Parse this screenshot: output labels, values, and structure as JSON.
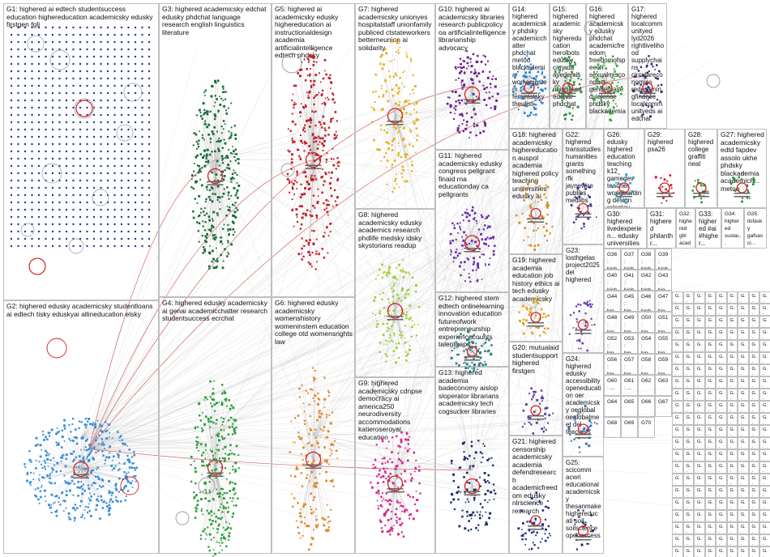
{
  "groups": [
    {
      "id": "G1",
      "label": "G1: highered ai edtech studentsuccess education highereducation academicsky edusky firstgen fgli"
    },
    {
      "id": "G2",
      "label": "G2: highered edusky academicsky studentloans ai edtech tisky eduskyai allineducation elsky"
    },
    {
      "id": "G3",
      "label": "G3: highered academicsky edchat edusky phdchat language research english linguistics literature"
    },
    {
      "id": "G4",
      "label": "G4: highered edusky academicsky ai genai academicchatter research studentsuccess ecrchat"
    },
    {
      "id": "G5",
      "label": "G5: highered ai academicsky edusky highereducation ai instructionaldesign academia artificialintelligence edtech phdsky"
    },
    {
      "id": "G6",
      "label": "G6: highered edusky academicsky womenshistory womeninstem education college otd womensrights law"
    },
    {
      "id": "G7",
      "label": "G7: highered academicsky unionyes hospitalstaff unionfamily publiced ctstateworkers betterneunion ai solidarity"
    },
    {
      "id": "G8",
      "label": "G8: highered academicsky edusky academics research phdlife medsky idsky skystorians readup"
    },
    {
      "id": "G9",
      "label": "G9: highered academicsky cdnpse democracy ai america250 neurodiversity accommodations katieroseroyal education"
    },
    {
      "id": "G10",
      "label": "G10: highered ai academicsky libraries research publicpolicy oa artificialintelligence librarianship advocacy"
    },
    {
      "id": "G11",
      "label": "G11: highered academicsky edusky congress pellgrant finaid rna educationday ca pellgrants"
    },
    {
      "id": "G12",
      "label": "G12: highered stem edtech onlinelearning innovation education futureofwork entrepreneurship experiencecounts talentgaps"
    },
    {
      "id": "G13",
      "label": "G13: highered academia badeconomy aislop sloperator librarians academicsky tech cogsucker libraries"
    },
    {
      "id": "G14",
      "label": "G14: highered academicsky phdsky academicchatter phdchat metoo blackademia womeninstem feministsky theulist"
    },
    {
      "id": "G15",
      "label": "G15: highered academicsky highereducation herolbots edusky canada avedemisky nhighered edchat phdchat"
    },
    {
      "id": "G16",
      "label": "G16: highered academicsky edusky phdchat academicfreedom freedomofspeech sexualmisconduct genderbasedviolence phdsky blackademia"
    },
    {
      "id": "G17",
      "label": "G17: highered localcommunityed lyd2026 rightlivelihood supplychains circulareconomies redesigningfinance localcommunityeds ai edchat"
    },
    {
      "id": "G18",
      "label": "G18: highered academicsky highereducation auspol academia highered policy teaching universities edusky ai"
    },
    {
      "id": "G19",
      "label": "G19: highered academia education job history ethics ai tech edusky academicsky"
    },
    {
      "id": "G20",
      "label": "G20: mutualaid studentsupport highered firstgen"
    },
    {
      "id": "G21",
      "label": "G21: highered censorship academicsky academia defendresearch academicfreedom edusky nlrscience research"
    },
    {
      "id": "G22",
      "label": "G22: highered transstudies humanities grants something rfk jaynewire publibs medlibs"
    },
    {
      "id": "G23",
      "label": "G23: losthgelas project2025 del highered"
    },
    {
      "id": "G24",
      "label": "G24: highered edusky accessibility openeducation oer academicsky oeglobal oeglobalmeet del teachers"
    },
    {
      "id": "G25",
      "label": "G25: scicomm acwri educational academicsky thesanmake highereducati soil soilscience openaccess"
    },
    {
      "id": "G26",
      "label": "G26: edusky highered education teaching k12 gamedev teacher worldbuilding design roleplay"
    },
    {
      "id": "G27",
      "label": "G27: highered academicsky edtd fapdev assolo ukhe phdsky blackademia academich... metoo"
    },
    {
      "id": "G28",
      "label": "G28: highered college graffiti neal"
    },
    {
      "id": "G29",
      "label": "G29: highered psa26"
    },
    {
      "id": "G30",
      "label": "G30: highered livedexperien... edusky universities phd genai migrantacade..."
    },
    {
      "id": "G31",
      "label": "G31: highered philanthr... grants fundraisi... colleges..."
    },
    {
      "id": "G32",
      "label": "G32: highered gbl academicsky gamedev games4..."
    },
    {
      "id": "G33",
      "label": "G33: highered #ai #higher... #books #literatu... #acup..."
    },
    {
      "id": "G34",
      "label": "G34: highered sustai... higher... medie... acade..."
    },
    {
      "id": "G35",
      "label": "G35: itsfasky gafsasci... academ... acade... izde..."
    },
    {
      "id": "G36",
      "label": "G36: high... pht ass nsf scie acc"
    },
    {
      "id": "G37",
      "label": "G37: high... (fut deta trad hod polit"
    },
    {
      "id": "G38",
      "label": "G38: high... edu pus high..."
    },
    {
      "id": "G39",
      "label": "G39: high... pho furth gen abo"
    },
    {
      "id": "G40",
      "label": "G40: high... usc pee"
    },
    {
      "id": "G41",
      "label": "G41: high... univ alcup"
    },
    {
      "id": "G42",
      "label": "G42: high... ugo aca"
    },
    {
      "id": "G43",
      "label": "G43: hig... acs bro"
    },
    {
      "id": "G44",
      "label": "G44: hig... rath fin"
    },
    {
      "id": "G45",
      "label": "G45: hig... phi"
    },
    {
      "id": "G46",
      "label": "G46: high..."
    },
    {
      "id": "G47",
      "label": "G47: hig... bro"
    },
    {
      "id": "G48",
      "label": "G48: hig... aca"
    },
    {
      "id": "G49",
      "label": "G49: hig..."
    },
    {
      "id": "G50",
      "label": "G50: hig... ato"
    },
    {
      "id": "G51",
      "label": "G51: hig..."
    },
    {
      "id": "G52",
      "label": "G52: hig..."
    },
    {
      "id": "G53",
      "label": "G53: hig..."
    },
    {
      "id": "G54",
      "label": "G54: hig..."
    },
    {
      "id": "G55",
      "label": "G55: hig..."
    },
    {
      "id": "G56",
      "label": "G56: hig..."
    },
    {
      "id": "G57",
      "label": "G57: hig..."
    },
    {
      "id": "G58",
      "label": "G58: hig..."
    },
    {
      "id": "G59",
      "label": "G59: hig..."
    },
    {
      "id": "G60",
      "label": "G60: ..."
    },
    {
      "id": "G61",
      "label": "G61: ..."
    },
    {
      "id": "G62",
      "label": "G62"
    },
    {
      "id": "G63",
      "label": "G63"
    },
    {
      "id": "G64",
      "label": "G64"
    },
    {
      "id": "G65",
      "label": "G65"
    },
    {
      "id": "G66",
      "label": "G66"
    },
    {
      "id": "G67",
      "label": "G67"
    },
    {
      "id": "G68",
      "label": "G68"
    },
    {
      "id": "G69",
      "label": "G69"
    },
    {
      "id": "G70",
      "label": "G70"
    }
  ],
  "colors": {
    "G1": "#1f3a93",
    "G2": "#3a8fd6",
    "G3": "#1b6b3a",
    "G4": "#2e9e3a",
    "G5": "#c0202a",
    "G6": "#e28a2b",
    "G7": "#e3b323",
    "G8": "#a6cc3b",
    "G9": "#d12a8f",
    "G10": "#6a1f8a",
    "G11": "#6a2fa8",
    "G12": "#2a7d7d",
    "G13": "#1b2b6b",
    "G14": "#2f7fc9",
    "G15": "#2e8b3e",
    "G16": "#3aa83a",
    "G17": "#2a2a7a",
    "G18": "#d98b1f",
    "G19": "#e0a21a",
    "G20": "#5a3fa0",
    "G21": "#1f2f8a",
    "G22": "#3a3a9a",
    "G23": "#6a3fb0",
    "G24": "#2f6fb0",
    "G25": "#1f2f6a",
    "G26": "#2a9ac0",
    "G27": "#2e8b3e",
    "G28": "#2e8b3e",
    "G29": "#c0202a",
    "edge": "#b5b5b5",
    "highlight": "#d42020",
    "border": "#bfbfbf"
  }
}
